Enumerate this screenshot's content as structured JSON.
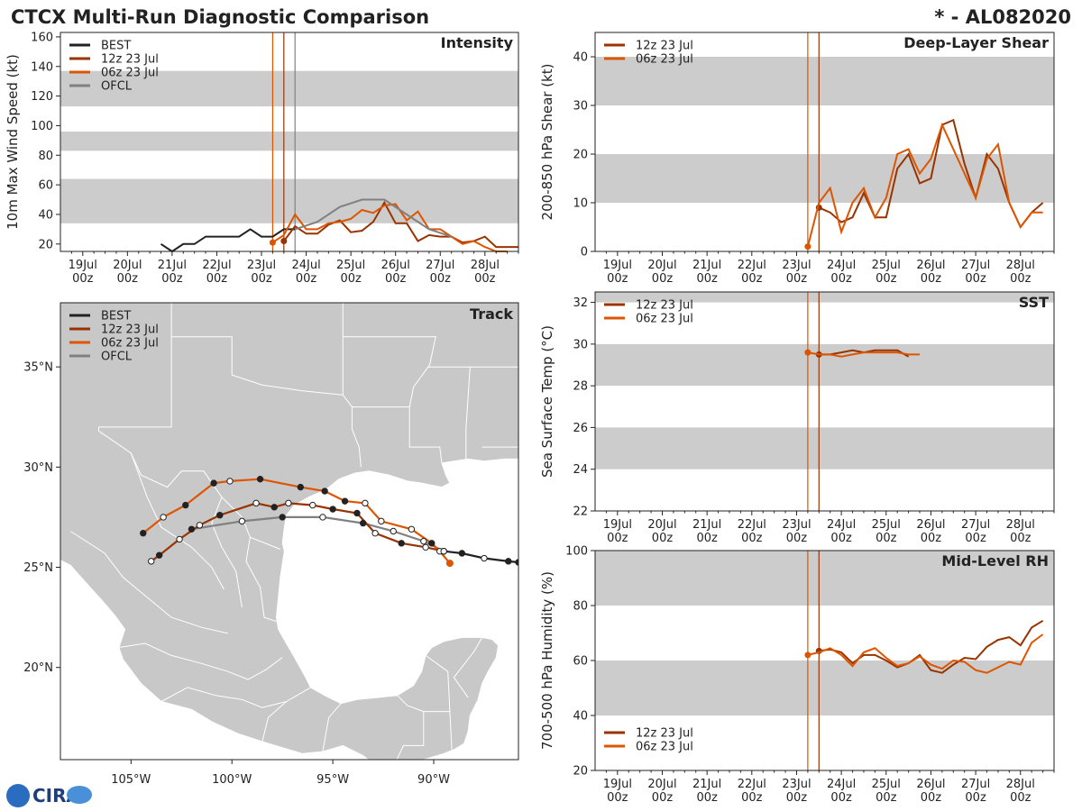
{
  "header": {
    "title": "CTCX Multi-Run Diagnostic Comparison",
    "storm_id": "* - AL082020"
  },
  "logo": {
    "text": "CIRA"
  },
  "colors": {
    "best": "#222222",
    "run12z": "#993300",
    "run06z": "#dd5500",
    "ofcl": "#808080",
    "band": "#cccccc",
    "land": "#c8c8c8",
    "border": "#ffffff"
  },
  "day_ticks": [
    {
      "line1": "19Jul",
      "line2": "00z"
    },
    {
      "line1": "20Jul",
      "line2": "00z"
    },
    {
      "line1": "21Jul",
      "line2": "00z"
    },
    {
      "line1": "22Jul",
      "line2": "00z"
    },
    {
      "line1": "23Jul",
      "line2": "00z"
    },
    {
      "line1": "24Jul",
      "line2": "00z"
    },
    {
      "line1": "25Jul",
      "line2": "00z"
    },
    {
      "line1": "26Jul",
      "line2": "00z"
    },
    {
      "line1": "27Jul",
      "line2": "00z"
    },
    {
      "line1": "28Jul",
      "line2": "00z"
    }
  ],
  "chart_data": [
    {
      "id": "intensity",
      "type": "line",
      "title": "Intensity",
      "ylabel": "10m Max Wind Speed (kt)",
      "xlabel": "",
      "x_units": "hours since 19Jul 00z",
      "xlim": [
        -12,
        234
      ],
      "ylim": [
        15,
        163
      ],
      "yticks": [
        20,
        40,
        60,
        80,
        100,
        120,
        140,
        160
      ],
      "bands": [
        [
          34,
          64
        ],
        [
          83,
          96
        ],
        [
          113,
          137
        ]
      ],
      "vlines": [
        {
          "x": 102,
          "color_key": "run06z"
        },
        {
          "x": 108,
          "color_key": "run12z"
        },
        {
          "x": 114,
          "color_key": "ofcl"
        }
      ],
      "legend": [
        {
          "label": "BEST",
          "color_key": "best"
        },
        {
          "label": "12z 23 Jul",
          "color_key": "run12z"
        },
        {
          "label": "06z 23 Jul",
          "color_key": "run06z"
        },
        {
          "label": "OFCL",
          "color_key": "ofcl"
        }
      ],
      "series": [
        {
          "name": "BEST",
          "color_key": "best",
          "x": [
            42,
            48,
            54,
            60,
            66,
            72,
            78,
            84,
            90,
            96,
            102,
            108,
            114
          ],
          "y": [
            20,
            15,
            20,
            20,
            25,
            25,
            25,
            25,
            30,
            25,
            25,
            30,
            30
          ]
        },
        {
          "name": "12z 23 Jul",
          "color_key": "run12z",
          "marker_first": true,
          "x": [
            108,
            114,
            120,
            126,
            132,
            138,
            144,
            150,
            156,
            162,
            168,
            174,
            180,
            186,
            192,
            198,
            204,
            210,
            216,
            222,
            228,
            234
          ],
          "y": [
            22,
            32,
            27,
            27,
            33,
            36,
            28,
            29,
            35,
            48,
            34,
            34,
            22,
            26,
            25,
            25,
            21,
            22,
            25,
            18,
            18,
            18
          ]
        },
        {
          "name": "06z 23 Jul",
          "color_key": "run06z",
          "marker_first": true,
          "x": [
            102,
            108,
            114,
            120,
            126,
            132,
            138,
            144,
            150,
            156,
            162,
            168,
            174,
            180,
            186,
            192,
            198,
            204,
            210,
            216,
            222,
            228
          ],
          "y": [
            21,
            26,
            40,
            30,
            30,
            34,
            35,
            37,
            43,
            41,
            46,
            47,
            36,
            42,
            30,
            30,
            25,
            20,
            22,
            18,
            15,
            15
          ]
        },
        {
          "name": "OFCL",
          "color_key": "ofcl",
          "x": [
            114,
            126,
            138,
            150,
            162,
            174,
            186,
            198
          ],
          "y": [
            30,
            35,
            45,
            50,
            50,
            40,
            30,
            25
          ]
        }
      ]
    },
    {
      "id": "shear",
      "type": "line",
      "title": "Deep-Layer Shear",
      "ylabel": "200-850 hPa Shear (kt)",
      "xlabel": "",
      "x_units": "hours since 19Jul 00z",
      "xlim": [
        -12,
        234
      ],
      "ylim": [
        0,
        45
      ],
      "yticks": [
        0,
        10,
        20,
        30,
        40
      ],
      "bands": [
        [
          10,
          20
        ],
        [
          30,
          40
        ]
      ],
      "vlines": [
        {
          "x": 102,
          "color_key": "run06z"
        },
        {
          "x": 108,
          "color_key": "run12z"
        }
      ],
      "legend": [
        {
          "label": "12z 23 Jul",
          "color_key": "run12z"
        },
        {
          "label": "06z 23 Jul",
          "color_key": "run06z"
        }
      ],
      "series": [
        {
          "name": "12z 23 Jul",
          "color_key": "run12z",
          "marker_first": true,
          "x": [
            108,
            114,
            120,
            126,
            132,
            138,
            144,
            150,
            156,
            162,
            168,
            174,
            180,
            186,
            192,
            198,
            204,
            210,
            216,
            222,
            228
          ],
          "y": [
            9,
            8,
            6,
            7,
            12,
            7,
            7,
            17,
            20,
            14,
            15,
            26,
            27,
            18,
            11,
            20,
            17,
            10,
            5,
            8,
            10
          ]
        },
        {
          "name": "06z 23 Jul",
          "color_key": "run06z",
          "marker_first": true,
          "x": [
            102,
            108,
            114,
            120,
            126,
            132,
            138,
            144,
            150,
            156,
            162,
            168,
            174,
            180,
            186,
            192,
            198,
            204,
            210,
            216,
            222,
            228
          ],
          "y": [
            1,
            10,
            13,
            4,
            10,
            13,
            7,
            11,
            20,
            21,
            16,
            19,
            26,
            21,
            16,
            11,
            19,
            22,
            10,
            5,
            8,
            8
          ]
        }
      ]
    },
    {
      "id": "sst",
      "type": "line",
      "title": "SST",
      "ylabel": "Sea Surface Temp (°C)",
      "xlabel": "",
      "x_units": "hours since 19Jul 00z",
      "xlim": [
        -12,
        234
      ],
      "ylim": [
        22,
        32.5
      ],
      "yticks": [
        22,
        24,
        26,
        28,
        30,
        32
      ],
      "bands": [
        [
          24,
          26
        ],
        [
          28,
          30
        ],
        [
          32,
          32.5
        ]
      ],
      "vlines": [
        {
          "x": 102,
          "color_key": "run06z"
        },
        {
          "x": 108,
          "color_key": "run12z"
        }
      ],
      "legend": [
        {
          "label": "12z 23 Jul",
          "color_key": "run12z"
        },
        {
          "label": "06z 23 Jul",
          "color_key": "run06z"
        }
      ],
      "series": [
        {
          "name": "12z 23 Jul",
          "color_key": "run12z",
          "marker_first": true,
          "x": [
            108,
            114,
            120,
            126,
            132,
            138,
            144,
            150,
            156
          ],
          "y": [
            29.5,
            29.5,
            29.6,
            29.7,
            29.6,
            29.7,
            29.7,
            29.7,
            29.4
          ]
        },
        {
          "name": "06z 23 Jul",
          "color_key": "run06z",
          "marker_first": true,
          "x": [
            102,
            108,
            114,
            120,
            126,
            132,
            138,
            144,
            150,
            156,
            162
          ],
          "y": [
            29.6,
            29.5,
            29.5,
            29.4,
            29.5,
            29.6,
            29.6,
            29.6,
            29.6,
            29.5,
            29.5
          ]
        }
      ]
    },
    {
      "id": "rh",
      "type": "line",
      "title": "Mid-Level RH",
      "ylabel": "700-500 hPa Humidity (%)",
      "xlabel": "",
      "x_units": "hours since 19Jul 00z",
      "xlim": [
        -12,
        234
      ],
      "ylim": [
        20,
        100
      ],
      "yticks": [
        20,
        40,
        60,
        80,
        100
      ],
      "bands": [
        [
          40,
          60
        ],
        [
          80,
          100
        ]
      ],
      "vlines": [
        {
          "x": 102,
          "color_key": "run06z"
        },
        {
          "x": 108,
          "color_key": "run12z"
        }
      ],
      "legend": [
        {
          "label": "12z 23 Jul",
          "color_key": "run12z"
        },
        {
          "label": "06z 23 Jul",
          "color_key": "run06z"
        }
      ],
      "series": [
        {
          "name": "12z 23 Jul",
          "color_key": "run12z",
          "marker_first": true,
          "x": [
            108,
            114,
            120,
            126,
            132,
            138,
            144,
            150,
            156,
            162,
            168,
            174,
            180,
            186,
            192,
            198,
            204,
            210,
            216,
            222,
            228
          ],
          "y": [
            63.5,
            64,
            63,
            59,
            62,
            62,
            60,
            57.5,
            59,
            62,
            56.5,
            55.5,
            58.5,
            61,
            60.5,
            65,
            67.5,
            68.5,
            65.5,
            72,
            74.5
          ]
        },
        {
          "name": "06z 23 Jul",
          "color_key": "run06z",
          "marker_first": true,
          "x": [
            102,
            108,
            114,
            120,
            126,
            132,
            138,
            144,
            150,
            156,
            162,
            168,
            174,
            180,
            186,
            192,
            198,
            204,
            210,
            216,
            222,
            228
          ],
          "y": [
            62,
            63,
            64.5,
            62,
            58,
            63,
            64.5,
            61,
            58,
            59,
            61.5,
            58.5,
            57,
            60,
            59.5,
            56.5,
            55.5,
            57.5,
            59.5,
            58.5,
            66.5,
            69.5
          ]
        }
      ]
    },
    {
      "id": "track",
      "type": "scatter",
      "title": "Track",
      "x_units": "longitude (deg E)",
      "y_units": "latitude (deg N)",
      "xlim": [
        -108.5,
        -85.8
      ],
      "ylim": [
        15.4,
        38.2
      ],
      "xticks": [
        {
          "value": -105,
          "label": "105°W"
        },
        {
          "value": -100,
          "label": "100°W"
        },
        {
          "value": -95,
          "label": "95°W"
        },
        {
          "value": -90,
          "label": "90°W"
        }
      ],
      "yticks": [
        {
          "value": 20,
          "label": "20°N"
        },
        {
          "value": 25,
          "label": "25°N"
        },
        {
          "value": 30,
          "label": "30°N"
        },
        {
          "value": 35,
          "label": "35°N"
        }
      ],
      "legend": [
        {
          "label": "BEST",
          "color_key": "best"
        },
        {
          "label": "12z 23 Jul",
          "color_key": "run12z"
        },
        {
          "label": "06z 23 Jul",
          "color_key": "run06z"
        },
        {
          "label": "OFCL",
          "color_key": "ofcl"
        }
      ],
      "series": [
        {
          "name": "BEST",
          "color_key": "best",
          "lon": [
            -85.8,
            -86.3,
            -87.5,
            -88.6,
            -89.5
          ],
          "lat": [
            25.25,
            25.3,
            25.45,
            25.7,
            25.8
          ],
          "markers": [
            1,
            1,
            0,
            1,
            0
          ]
        },
        {
          "name": "12z 23 Jul",
          "color_key": "run12z",
          "lon": [
            -89.5,
            -90.4,
            -91.6,
            -92.9,
            -93.8,
            -95.0,
            -96.0,
            -97.2,
            -97.9,
            -98.8,
            -100.6,
            -101.6,
            -102.6,
            -103.6,
            -104.0
          ],
          "lat": [
            25.8,
            26.0,
            26.2,
            26.7,
            27.7,
            27.9,
            28.1,
            28.2,
            28.0,
            28.2,
            27.6,
            27.1,
            26.4,
            25.6,
            25.3
          ],
          "markers": [
            0,
            0,
            1,
            0,
            1,
            1,
            0,
            0,
            1,
            0,
            1,
            0,
            0,
            1,
            0
          ]
        },
        {
          "name": "06z 23 Jul",
          "color_key": "run06z",
          "lon": [
            -89.2,
            -89.7,
            -90.1,
            -91.1,
            -92.6,
            -93.4,
            -94.4,
            -95.4,
            -96.6,
            -98.6,
            -100.1,
            -100.9,
            -102.3,
            -103.4,
            -104.4
          ],
          "lat": [
            25.2,
            25.8,
            26.2,
            26.9,
            27.3,
            28.2,
            28.3,
            28.8,
            29.0,
            29.4,
            29.3,
            29.2,
            28.1,
            27.5,
            26.7
          ],
          "markers": [
            1,
            0,
            1,
            0,
            0,
            0,
            1,
            1,
            1,
            1,
            0,
            1,
            1,
            0,
            1
          ]
        },
        {
          "name": "OFCL",
          "color_key": "ofcl",
          "lon": [
            -89.5,
            -90.5,
            -92.0,
            -93.5,
            -95.5,
            -97.5,
            -99.5,
            -102.0
          ],
          "lat": [
            25.8,
            26.3,
            26.8,
            27.2,
            27.5,
            27.5,
            27.3,
            26.9
          ],
          "markers": [
            1,
            0,
            0,
            1,
            0,
            1,
            0,
            1
          ]
        }
      ]
    }
  ]
}
